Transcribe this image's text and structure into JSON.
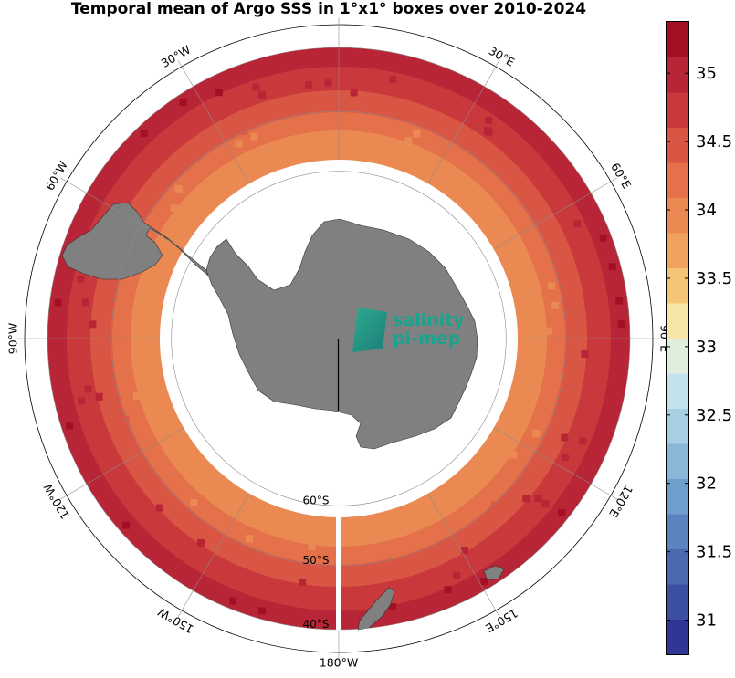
{
  "title": "Temporal mean of Argo SSS in 1°x1° boxes over 2010-2024",
  "map": {
    "projection": "south polar stereographic",
    "longitude_labels": [
      {
        "id": "lon-30w",
        "text": "30°W",
        "angle": -30
      },
      {
        "id": "lon-30e",
        "text": "30°E",
        "angle": 30
      },
      {
        "id": "lon-60w",
        "text": "60°W",
        "angle": -60
      },
      {
        "id": "lon-60e",
        "text": "60°E",
        "angle": 60
      },
      {
        "id": "lon-90w",
        "text": "90°W",
        "angle": -90
      },
      {
        "id": "lon-90e",
        "text": "90°E",
        "angle": 90
      },
      {
        "id": "lon-120w",
        "text": "120°W",
        "angle": -120
      },
      {
        "id": "lon-120e",
        "text": "120°E",
        "angle": 120
      },
      {
        "id": "lon-150w",
        "text": "150°W",
        "angle": -150
      },
      {
        "id": "lon-150e",
        "text": "150°E",
        "angle": 150
      },
      {
        "id": "lon-180w",
        "text": "180°W",
        "angle": 180
      }
    ],
    "latitude_labels": [
      {
        "id": "lat-60s",
        "text": "60°S",
        "lat": -60
      },
      {
        "id": "lat-50s",
        "text": "50°S",
        "lat": -50
      },
      {
        "id": "lat-40s",
        "text": "40°S",
        "lat": -40
      }
    ],
    "lat_range": [
      -70,
      -40
    ],
    "colors": {
      "land": "#808080",
      "grid": "#8c8c8c"
    }
  },
  "colorbar": {
    "min": 30.75,
    "max": 35.375,
    "step": 0.125,
    "tick_labels": [
      "31",
      "31.5",
      "32",
      "32.5",
      "33",
      "33.5",
      "34",
      "34.5",
      "35"
    ],
    "tick_values": [
      31,
      31.5,
      32,
      32.5,
      33,
      33.5,
      34,
      34.5,
      35
    ],
    "palette": [
      "#313695",
      "#3d4fa3",
      "#4a69b1",
      "#5b83bf",
      "#6f9dcc",
      "#89b7d8",
      "#a6cfe3",
      "#c4e2ec",
      "#dfeedd",
      "#f6e6a6",
      "#f4c577",
      "#f0a25e",
      "#ea8a52",
      "#e4714a",
      "#d95544",
      "#c9393c",
      "#b82536",
      "#a50f26"
    ]
  },
  "logo": {
    "line1": "salinity",
    "line2": "pi-mep",
    "color": "#1aa38c"
  }
}
